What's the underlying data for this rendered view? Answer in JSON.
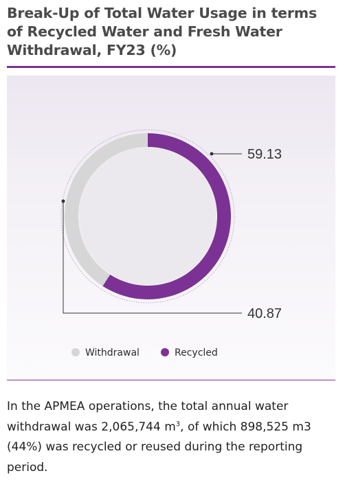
{
  "title": "Break-Up of Total Water Usage in terms of Recycled Water and Fresh Water Withdrawal, FY23 (%)",
  "chart_data": {
    "type": "pie",
    "variant": "donut",
    "categories": [
      "Recycled",
      "Withdrawal"
    ],
    "values": [
      59.13,
      40.87
    ],
    "data_labels": [
      "59.13",
      "40.87"
    ],
    "legend": {
      "placement": "bottom",
      "items": [
        "Withdrawal",
        "Recycled"
      ]
    },
    "colors": {
      "Recycled": "#7b3294",
      "Withdrawal": "#d6d6d6"
    }
  },
  "description": {
    "text_before": "In the APMEA operations, the total annual water withdrawal was 2,065,744 m",
    "superscript": "3",
    "text_after": ", of which 898,525 m3 (44%) was recycled or reused during the reporting period."
  }
}
